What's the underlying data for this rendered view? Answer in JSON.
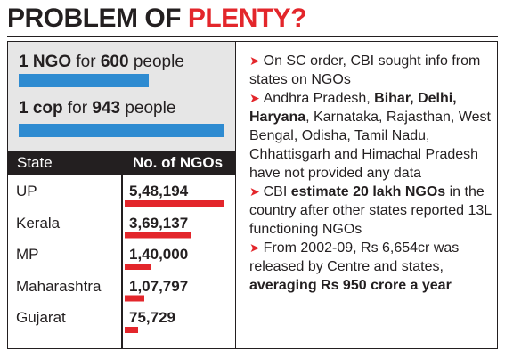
{
  "title": {
    "part1": "PROBLEM OF ",
    "part2": "PLENTY?"
  },
  "ratios": [
    {
      "lead": "1 NGO",
      "mid": " for ",
      "num": "600",
      "tail": " people",
      "people": 600
    },
    {
      "lead": "1 cop",
      "mid": " for ",
      "num": "943",
      "tail": " people",
      "people": 943
    }
  ],
  "table": {
    "col_state": "State",
    "col_ngos": "No. of NGOs"
  },
  "chart_data": {
    "type": "bar",
    "categories": [
      "UP",
      "Kerala",
      "MP",
      "Maharashtra",
      "Gujarat"
    ],
    "values": [
      548194,
      369137,
      140000,
      107797,
      75729
    ],
    "value_labels": [
      "5,48,194",
      "3,69,137",
      "1,40,000",
      "1,07,797",
      "75,729"
    ],
    "xlabel": "State",
    "ylabel": "No. of NGOs",
    "title": "",
    "bar_color": "#e3262b"
  },
  "notes": [
    {
      "segments": [
        {
          "t": "On SC order, CBI sought info from states on NGOs",
          "b": false
        }
      ]
    },
    {
      "segments": [
        {
          "t": "Andhra Pradesh, ",
          "b": false
        },
        {
          "t": "Bihar, Delhi, Haryana",
          "b": true
        },
        {
          "t": ", Karnataka, Rajasthan, West Bengal, Odisha, Tamil Nadu, Chhattisgarh and Himachal Pradesh have not provided any data",
          "b": false
        }
      ]
    },
    {
      "segments": [
        {
          "t": "CBI ",
          "b": false
        },
        {
          "t": "estimate 20 lakh NGOs",
          "b": true
        },
        {
          "t": " in the country after other states reported 13L functioning NGOs",
          "b": false
        }
      ]
    },
    {
      "segments": [
        {
          "t": "From 2002-09, Rs 6,654cr was released by Centre and states, ",
          "b": false
        },
        {
          "t": "averaging Rs 950 crore a year",
          "b": true
        }
      ]
    }
  ],
  "colors": {
    "accent": "#e3262b",
    "blue": "#2e8bd1",
    "grey": "#e6e6e6",
    "dark": "#231f20"
  }
}
